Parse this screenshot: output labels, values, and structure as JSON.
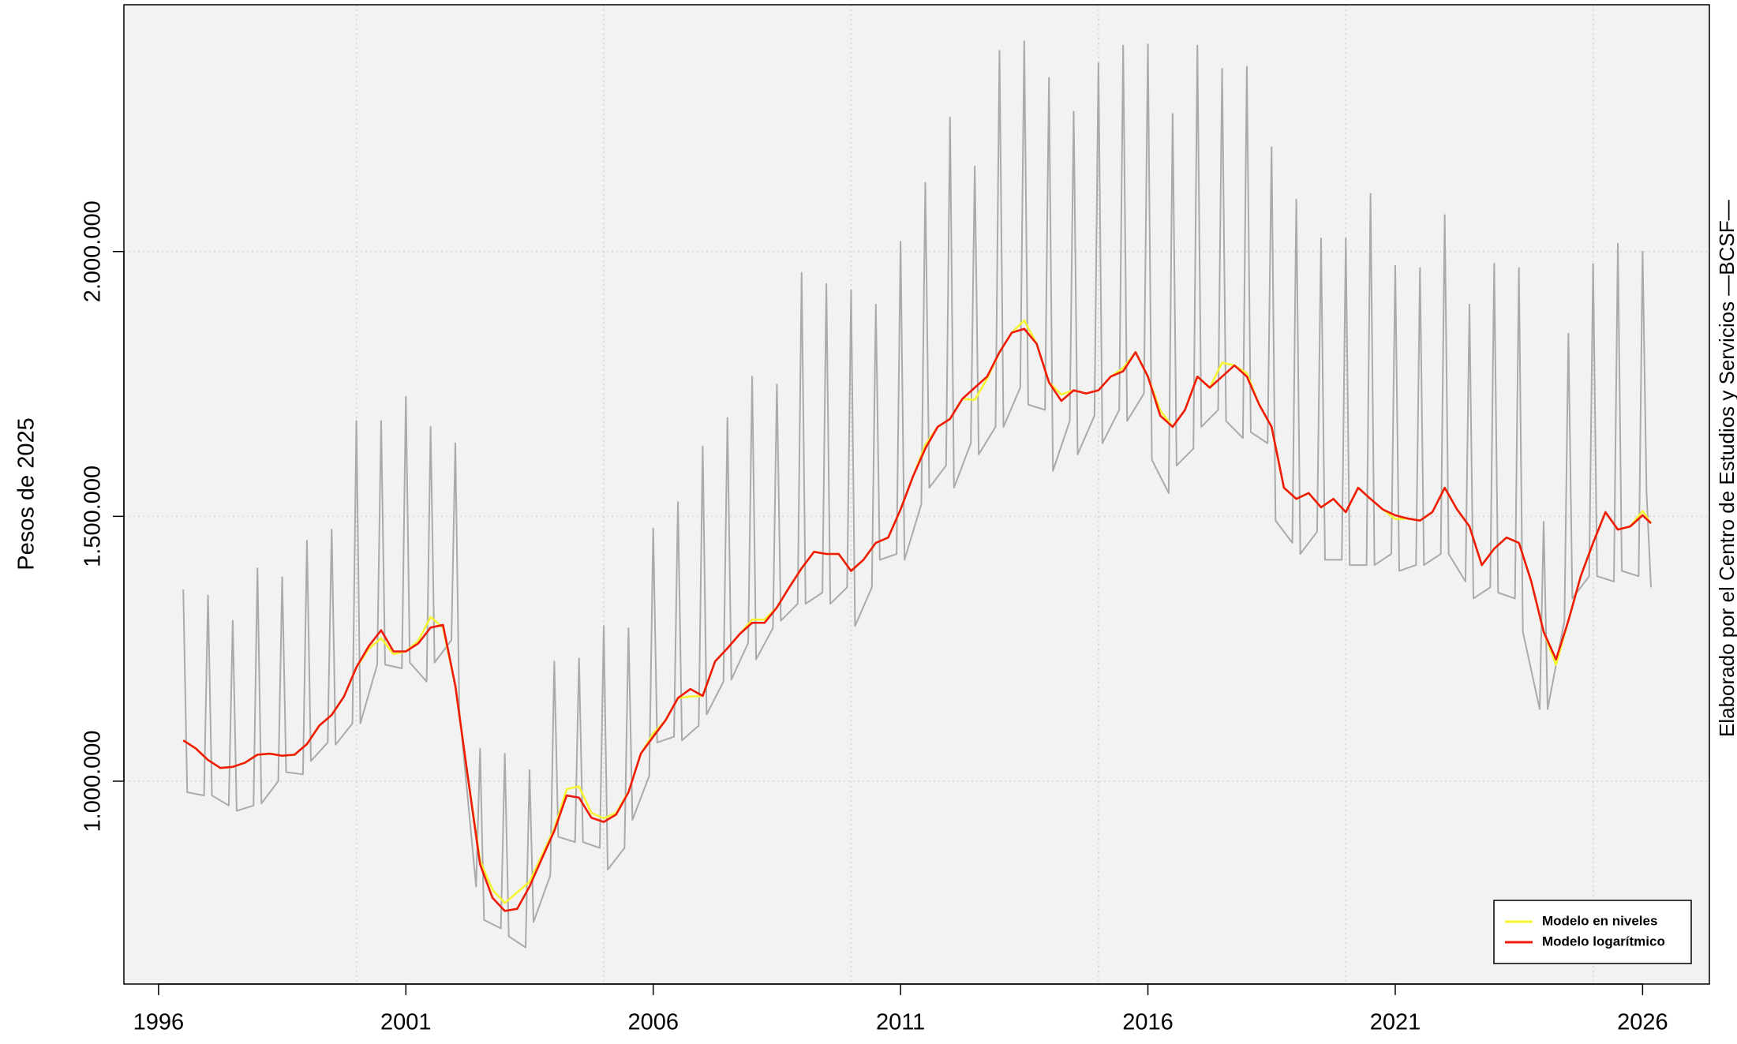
{
  "chart_data": {
    "type": "line",
    "y_label": "Pesos de 2025",
    "note": "Elaborado por el Centro de Estudios y Servicios —BCSF—",
    "xlim": [
      1995.3,
      2027.35
    ],
    "xticks": [
      1996,
      2001,
      2006,
      2011,
      2016,
      2021,
      2026
    ],
    "xgrid": [
      2000,
      2005,
      2010,
      2015,
      2020,
      2025
    ],
    "ylim": [
      617000,
      2466000
    ],
    "yticks": [
      {
        "value": 1000000,
        "label": "1.000.000"
      },
      {
        "value": 1500000,
        "label": "1.500.000"
      },
      {
        "value": 2000000,
        "label": "2.000.000"
      }
    ],
    "grid": true,
    "legend": "bottomright",
    "x": [
      1996.5,
      1996.75,
      1997,
      1997.25,
      1997.5,
      1997.75,
      1998,
      1998.25,
      1998.5,
      1998.75,
      1999,
      1999.25,
      1999.5,
      1999.75,
      2000,
      2000.25,
      2000.5,
      2000.75,
      2001,
      2001.25,
      2001.5,
      2001.75,
      2002,
      2002.25,
      2002.5,
      2002.75,
      2003,
      2003.25,
      2003.5,
      2003.75,
      2004,
      2004.25,
      2004.5,
      2004.75,
      2005,
      2005.25,
      2005.5,
      2005.75,
      2006,
      2006.25,
      2006.5,
      2006.75,
      2007,
      2007.25,
      2007.5,
      2007.75,
      2008,
      2008.25,
      2008.5,
      2008.75,
      2009,
      2009.25,
      2009.5,
      2009.75,
      2010,
      2010.25,
      2010.5,
      2010.75,
      2011,
      2011.25,
      2011.5,
      2011.75,
      2012,
      2012.25,
      2012.5,
      2012.75,
      2013,
      2013.25,
      2013.5,
      2013.75,
      2014,
      2014.25,
      2014.5,
      2014.75,
      2015,
      2015.25,
      2015.5,
      2015.75,
      2016,
      2016.25,
      2016.5,
      2016.75,
      2017,
      2017.25,
      2017.5,
      2017.75,
      2018,
      2018.25,
      2018.5,
      2018.75,
      2019,
      2019.25,
      2019.5,
      2019.75,
      2020,
      2020.25,
      2020.5,
      2020.75,
      2021,
      2021.25,
      2021.5,
      2021.75,
      2022,
      2022.25,
      2022.5,
      2022.75,
      2023,
      2023.25,
      2023.5,
      2023.75,
      2024,
      2024.25,
      2024.5,
      2024.75,
      2025,
      2025.25,
      2025.5,
      2025.75,
      2026,
      2026.17
    ],
    "series": [
      {
        "color": "#aaaaaa",
        "x": [
          1996.5,
          1996.58,
          1996.92,
          1997,
          1997.08,
          1997.42,
          1997.5,
          1997.58,
          1997.92,
          1998,
          1998.08,
          1998.42,
          1998.5,
          1998.58,
          1998.92,
          1999,
          1999.08,
          1999.42,
          1999.5,
          1999.58,
          1999.92,
          2000,
          2000.08,
          2000.42,
          2000.5,
          2000.58,
          2000.92,
          2001,
          2001.08,
          2001.42,
          2001.5,
          2001.58,
          2001.92,
          2002,
          2002.08,
          2002.42,
          2002.5,
          2002.58,
          2002.92,
          2003,
          2003.08,
          2003.42,
          2003.5,
          2003.58,
          2003.92,
          2004,
          2004.08,
          2004.42,
          2004.5,
          2004.58,
          2004.92,
          2005,
          2005.08,
          2005.42,
          2005.5,
          2005.58,
          2005.92,
          2006,
          2006.08,
          2006.42,
          2006.5,
          2006.58,
          2006.92,
          2007,
          2007.08,
          2007.42,
          2007.5,
          2007.58,
          2007.92,
          2008,
          2008.08,
          2008.42,
          2008.5,
          2008.58,
          2008.92,
          2009,
          2009.08,
          2009.42,
          2009.5,
          2009.58,
          2009.92,
          2010,
          2010.08,
          2010.42,
          2010.5,
          2010.58,
          2010.92,
          2011,
          2011.08,
          2011.42,
          2011.5,
          2011.58,
          2011.92,
          2012,
          2012.08,
          2012.42,
          2012.5,
          2012.58,
          2012.92,
          2013,
          2013.08,
          2013.42,
          2013.5,
          2013.58,
          2013.92,
          2014,
          2014.08,
          2014.42,
          2014.5,
          2014.58,
          2014.92,
          2015,
          2015.08,
          2015.42,
          2015.5,
          2015.58,
          2015.92,
          2016,
          2016.08,
          2016.42,
          2016.5,
          2016.58,
          2016.92,
          2017,
          2017.08,
          2017.42,
          2017.5,
          2017.58,
          2017.92,
          2018,
          2018.08,
          2018.42,
          2018.5,
          2018.58,
          2018.92,
          2019,
          2019.08,
          2019.42,
          2019.5,
          2019.58,
          2019.92,
          2020,
          2020.08,
          2020.42,
          2020.5,
          2020.58,
          2020.92,
          2021,
          2021.08,
          2021.42,
          2021.5,
          2021.58,
          2021.92,
          2022,
          2022.08,
          2022.42,
          2022.5,
          2022.58,
          2022.92,
          2023,
          2023.08,
          2023.42,
          2023.5,
          2023.58,
          2023.92,
          2024,
          2024.08,
          2024.42,
          2024.5,
          2024.58,
          2024.92,
          2025,
          2025.08,
          2025.42,
          2025.5,
          2025.58,
          2025.92,
          2026,
          2026.08,
          2026.17
        ],
        "values": [
          1362000,
          979000,
          973000,
          1351000,
          973000,
          954000,
          1303000,
          944000,
          954000,
          1402000,
          958000,
          1000000,
          1385000,
          1017000,
          1013000,
          1454000,
          1038000,
          1073000,
          1475000,
          1069000,
          1109000,
          1680000,
          1109000,
          1220000,
          1680000,
          1220000,
          1213000,
          1726000,
          1224000,
          1188000,
          1669000,
          1224000,
          1266000,
          1638000,
          1136000,
          801000,
          1061000,
          738000,
          722000,
          1052000,
          707000,
          686000,
          1021000,
          734000,
          822000,
          1226000,
          895000,
          885000,
          1232000,
          885000,
          874000,
          1293000,
          833000,
          874000,
          1289000,
          927000,
          1010000,
          1477000,
          1073000,
          1084000,
          1527000,
          1077000,
          1105000,
          1632000,
          1126000,
          1188000,
          1686000,
          1192000,
          1261000,
          1764000,
          1230000,
          1289000,
          1749000,
          1303000,
          1335000,
          1960000,
          1335000,
          1356000,
          1939000,
          1335000,
          1366000,
          1927000,
          1293000,
          1366000,
          1900000,
          1418000,
          1429000,
          2019000,
          1418000,
          1523000,
          2130000,
          1554000,
          1596000,
          2253000,
          1554000,
          1638000,
          2161000,
          1617000,
          1669000,
          2379000,
          1669000,
          1743000,
          2397000,
          1711000,
          1701000,
          2328000,
          1586000,
          1680000,
          2264000,
          1617000,
          1690000,
          2356000,
          1638000,
          1701000,
          2389000,
          1680000,
          1732000,
          2391000,
          1607000,
          1544000,
          2260000,
          1596000,
          1628000,
          2389000,
          1669000,
          1701000,
          2345000,
          1680000,
          1648000,
          2349000,
          1659000,
          1638000,
          2197000,
          1492000,
          1450000,
          2098000,
          1429000,
          1471000,
          2025000,
          1418000,
          1418000,
          2025000,
          1408000,
          1408000,
          2109000,
          1408000,
          1429000,
          1973000,
          1397000,
          1408000,
          1969000,
          1408000,
          1429000,
          2069000,
          1429000,
          1377000,
          1900000,
          1345000,
          1366000,
          1977000,
          1356000,
          1345000,
          1969000,
          1282000,
          1136000,
          1490000,
          1136000,
          1303000,
          1845000,
          1345000,
          1387000,
          1977000,
          1387000,
          1377000,
          2015000,
          1397000,
          1387000,
          2000000,
          1544000,
          1366000
        ]
      },
      {
        "name": "Modelo en niveles",
        "color": "#f5f532",
        "values": [
          1077000,
          1062000,
          1040000,
          1025000,
          1027000,
          1035000,
          1050000,
          1052000,
          1048000,
          1050000,
          1070000,
          1105000,
          1125000,
          1160000,
          1215000,
          1250000,
          1270000,
          1240000,
          1245000,
          1265000,
          1310000,
          1290000,
          1180000,
          1010000,
          850000,
          795000,
          770000,
          790000,
          810000,
          860000,
          910000,
          985000,
          990000,
          940000,
          930000,
          940000,
          980000,
          1052000,
          1090000,
          1115000,
          1157000,
          1160000,
          1161000,
          1226000,
          1251000,
          1278000,
          1305000,
          1305000,
          1328000,
          1366000,
          1402000,
          1433000,
          1429000,
          1429000,
          1397000,
          1418000,
          1450000,
          1460000,
          1513000,
          1575000,
          1635000,
          1669000,
          1684000,
          1722000,
          1720000,
          1760000,
          1810000,
          1847000,
          1870000,
          1826000,
          1753000,
          1730000,
          1738000,
          1732000,
          1738000,
          1764000,
          1780000,
          1810000,
          1764000,
          1700000,
          1669000,
          1701000,
          1764000,
          1743000,
          1790000,
          1785000,
          1770000,
          1711000,
          1669000,
          1554000,
          1533000,
          1544000,
          1517000,
          1533000,
          1508000,
          1554000,
          1533000,
          1513000,
          1495000,
          1496000,
          1492000,
          1508000,
          1554000,
          1513000,
          1481000,
          1408000,
          1439000,
          1460000,
          1450000,
          1377000,
          1282000,
          1220000,
          1303000,
          1387000,
          1450000,
          1508000,
          1475000,
          1481000,
          1510000,
          1487000
        ]
      },
      {
        "name": "Modelo logarítmico",
        "color": "#ee1a0a",
        "values": [
          1077000,
          1062000,
          1040000,
          1025000,
          1027000,
          1035000,
          1050000,
          1052000,
          1048000,
          1050000,
          1070000,
          1105000,
          1125000,
          1160000,
          1215000,
          1255000,
          1285000,
          1245000,
          1245000,
          1260000,
          1290000,
          1295000,
          1180000,
          1010000,
          843000,
          780000,
          755000,
          759000,
          801000,
          854000,
          906000,
          973000,
          969000,
          931000,
          923000,
          937000,
          979000,
          1052000,
          1084000,
          1115000,
          1157000,
          1174000,
          1161000,
          1226000,
          1251000,
          1278000,
          1299000,
          1299000,
          1328000,
          1366000,
          1402000,
          1433000,
          1429000,
          1429000,
          1397000,
          1418000,
          1450000,
          1460000,
          1513000,
          1575000,
          1628000,
          1669000,
          1684000,
          1722000,
          1743000,
          1764000,
          1810000,
          1847000,
          1854000,
          1826000,
          1753000,
          1718000,
          1738000,
          1732000,
          1738000,
          1764000,
          1774000,
          1810000,
          1764000,
          1690000,
          1669000,
          1701000,
          1764000,
          1743000,
          1764000,
          1785000,
          1764000,
          1711000,
          1669000,
          1554000,
          1533000,
          1544000,
          1517000,
          1533000,
          1508000,
          1554000,
          1533000,
          1513000,
          1502000,
          1496000,
          1492000,
          1508000,
          1554000,
          1513000,
          1481000,
          1408000,
          1439000,
          1460000,
          1450000,
          1377000,
          1282000,
          1230000,
          1303000,
          1387000,
          1450000,
          1508000,
          1475000,
          1481000,
          1502000,
          1487000
        ]
      }
    ]
  }
}
